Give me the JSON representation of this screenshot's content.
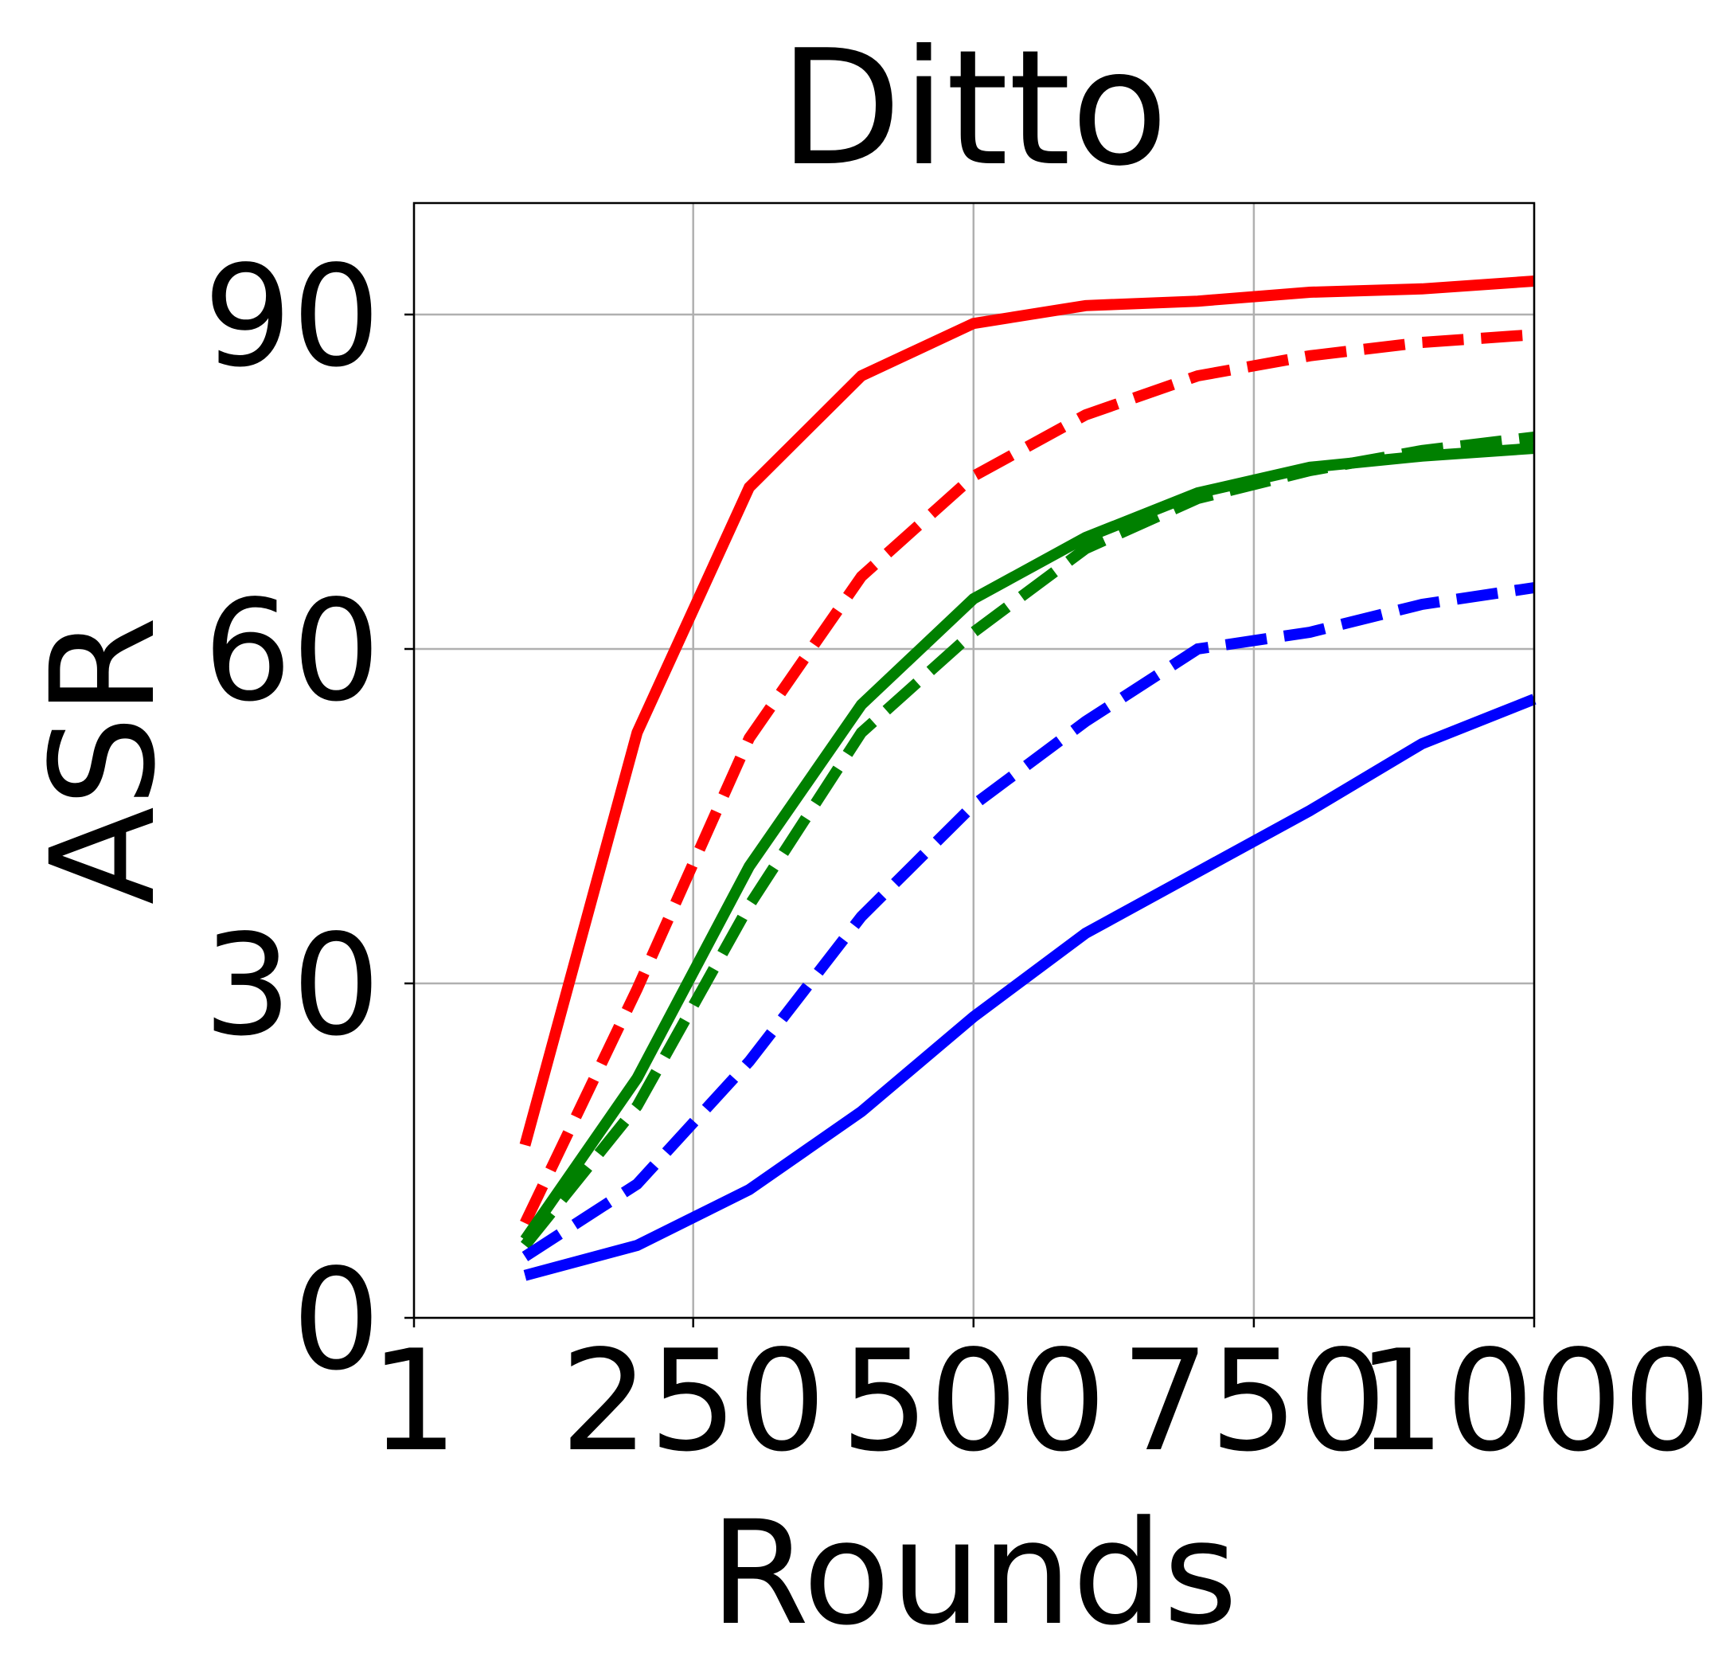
{
  "chart_data": {
    "type": "line",
    "title": "Ditto",
    "xlabel": "Rounds",
    "ylabel": "ASR",
    "xlim": [
      1,
      1000
    ],
    "ylim": [
      0,
      100
    ],
    "xticks": [
      1,
      250,
      500,
      750,
      1000
    ],
    "xtick_labels": [
      "1",
      "250",
      "500",
      "750",
      "1000"
    ],
    "yticks": [
      0,
      30,
      60,
      90
    ],
    "ytick_labels": [
      "0",
      "30",
      "60",
      "90"
    ],
    "grid": true,
    "x": [
      100,
      200,
      300,
      400,
      500,
      600,
      700,
      800,
      900,
      1000
    ],
    "series": [
      {
        "color": "#ff0000",
        "style": "solid",
        "values": [
          15.5,
          52.5,
          74.5,
          84.5,
          89.2,
          90.8,
          91.2,
          92.0,
          92.3,
          93.0
        ]
      },
      {
        "color": "#ff0000",
        "style": "dashed",
        "values": [
          8.5,
          29.5,
          52.0,
          66.5,
          75.5,
          81.0,
          84.5,
          86.3,
          87.5,
          88.2
        ]
      },
      {
        "color": "#008000",
        "style": "solid",
        "values": [
          7.0,
          21.5,
          40.5,
          55.0,
          64.5,
          70.0,
          74.0,
          76.3,
          77.3,
          78.0
        ]
      },
      {
        "color": "#008000",
        "style": "dashed",
        "values": [
          6.5,
          19.0,
          37.0,
          52.5,
          61.5,
          69.0,
          73.5,
          76.0,
          77.8,
          79.0
        ]
      },
      {
        "color": "#0000ff",
        "style": "solid",
        "values": [
          3.8,
          6.5,
          11.5,
          18.5,
          27.0,
          34.5,
          40.0,
          45.5,
          51.5,
          55.5
        ]
      },
      {
        "color": "#0000ff",
        "style": "dashed",
        "values": [
          5.5,
          12.0,
          23.0,
          36.0,
          46.0,
          53.5,
          60.0,
          61.5,
          64.0,
          65.5
        ]
      }
    ]
  }
}
